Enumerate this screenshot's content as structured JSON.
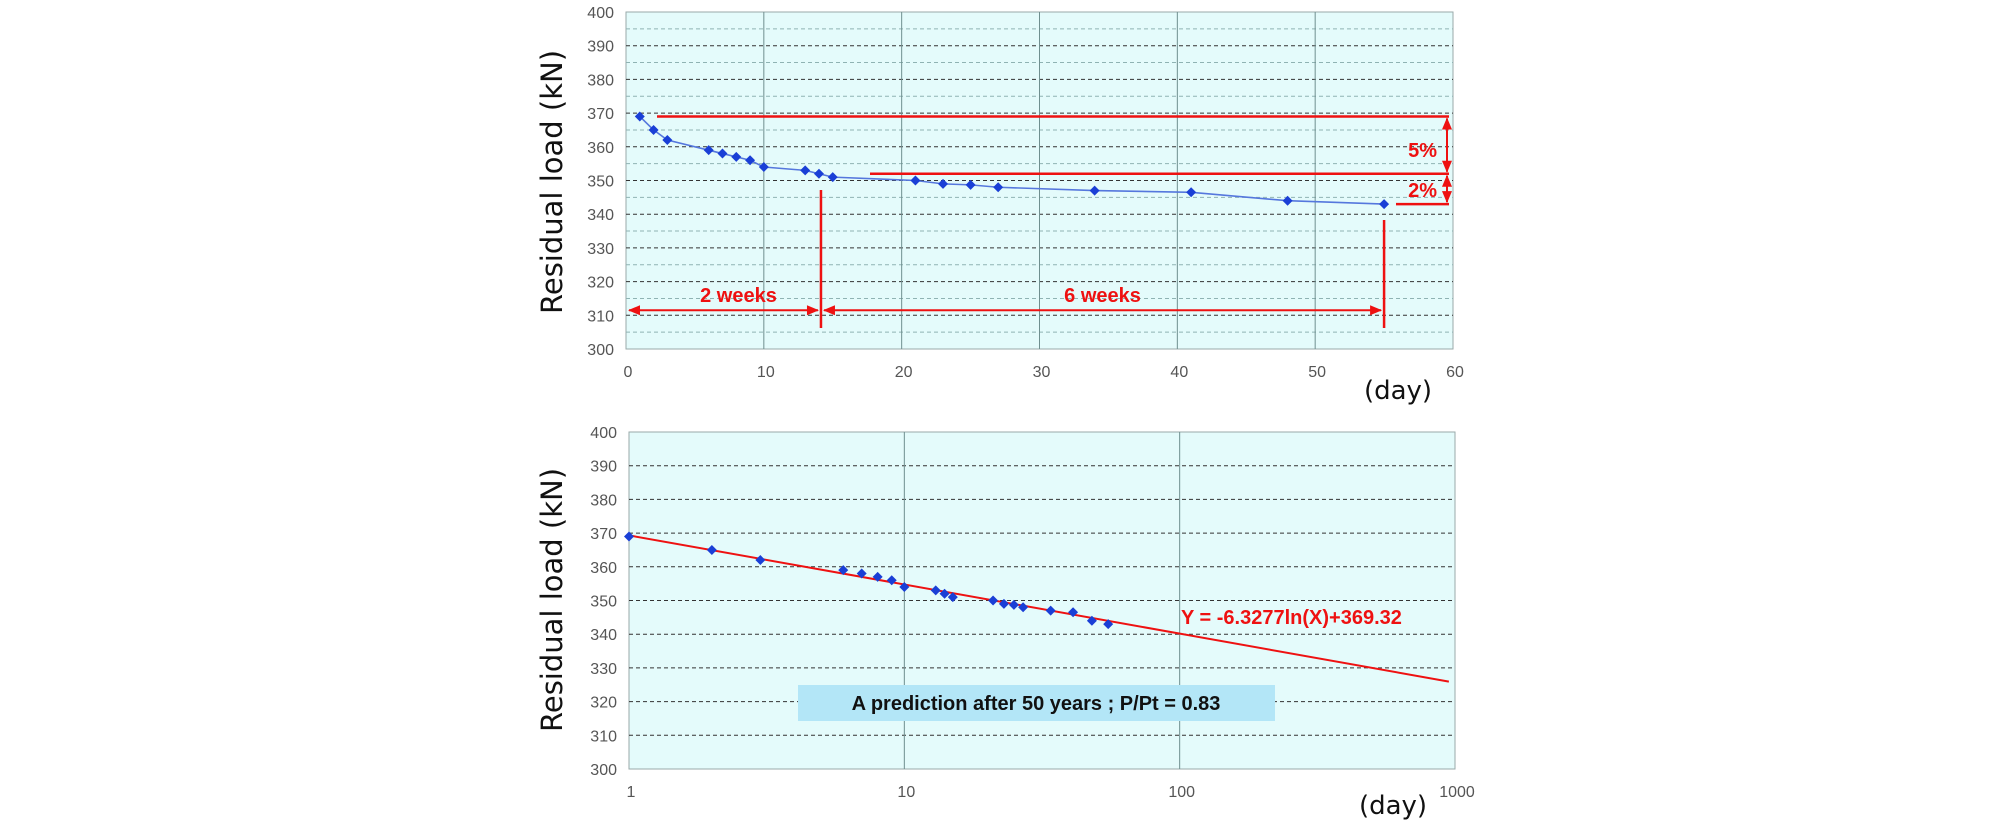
{
  "chart_data": [
    {
      "type": "line",
      "ylabel": "Residual load (kN)",
      "xlabel": "(day)",
      "xlim": [
        0,
        60
      ],
      "ylim": [
        300,
        400
      ],
      "xticks": [
        "0",
        "10",
        "20",
        "30",
        "40",
        "50",
        "60"
      ],
      "yticks": [
        "300",
        "310",
        "320",
        "330",
        "340",
        "350",
        "360",
        "370",
        "380",
        "390",
        "400"
      ],
      "series": [
        {
          "name": "Residual load",
          "x": [
            1,
            2,
            3,
            6,
            7,
            8,
            9,
            10,
            13,
            14,
            15,
            21,
            23,
            25,
            27,
            34,
            41,
            48,
            55
          ],
          "y": [
            369,
            365,
            362,
            359,
            358,
            357,
            356,
            354,
            353,
            352,
            351,
            350,
            349,
            348.7,
            348,
            347,
            346.5,
            344,
            343
          ]
        }
      ],
      "annotations": {
        "two_weeks": "2 weeks",
        "six_weeks": "6 weeks",
        "five_percent": "5%",
        "two_percent": "2%"
      },
      "reference_lines": {
        "initial_load": 369,
        "two_week_load": 352,
        "final_load": 343,
        "two_week_day": 14,
        "final_day": 55
      },
      "colors": {
        "series": "#1a3fd6",
        "line": "#5577dd",
        "annotation": "#ee1111",
        "plot_bg": "#e4fbfb"
      }
    },
    {
      "type": "scatter",
      "xscale": "log",
      "ylabel": "Residual load (kN)",
      "xlabel": "(day)",
      "xlim": [
        1,
        1000
      ],
      "ylim": [
        300,
        400
      ],
      "xticks": [
        "1",
        "10",
        "100",
        "1000"
      ],
      "yticks": [
        "300",
        "310",
        "320",
        "330",
        "340",
        "350",
        "360",
        "370",
        "380",
        "390",
        "400"
      ],
      "series": [
        {
          "name": "Residual load",
          "x": [
            1,
            2,
            3,
            6,
            7,
            8,
            9,
            10,
            13,
            14,
            15,
            21,
            23,
            25,
            27,
            34,
            41,
            48,
            55
          ],
          "y": [
            369,
            365,
            362,
            359,
            358,
            357,
            356,
            354,
            353,
            352,
            351,
            350,
            349,
            348.7,
            348,
            347,
            346.5,
            344,
            343
          ]
        }
      ],
      "trendline": {
        "equation": "Y = -6.3277ln(X)+369.32",
        "a": -6.3277,
        "b": 369.32,
        "x_end": 950
      },
      "note": "A prediction after 50 years ; P/Pt = 0.83",
      "colors": {
        "series": "#1a3fd6",
        "trend": "#ee1111",
        "plot_bg": "#e4fbfb",
        "note_bg": "#b3e6f7"
      }
    }
  ]
}
